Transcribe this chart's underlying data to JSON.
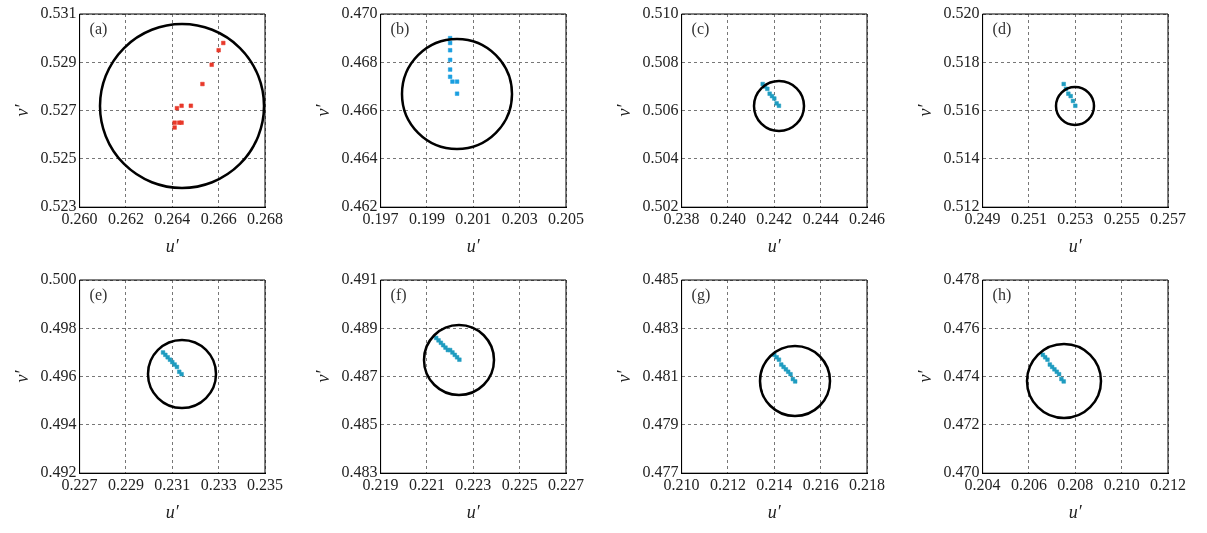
{
  "chart_data": [
    {
      "type": "scatter",
      "annotations": [
        "(a)"
      ],
      "xlabel": "u′",
      "ylabel": "v′",
      "grid": true,
      "xlim": [
        0.26,
        0.268
      ],
      "xticks": [
        {
          "value": 0.26,
          "label": "0.260"
        },
        {
          "value": 0.262,
          "label": "0.262"
        },
        {
          "value": 0.264,
          "label": "0.264"
        },
        {
          "value": 0.266,
          "label": "0.266"
        },
        {
          "value": 0.268,
          "label": "0.268"
        }
      ],
      "ylim": [
        0.523,
        0.531
      ],
      "yticks": [
        {
          "value": 0.523,
          "label": "0.523"
        },
        {
          "value": 0.525,
          "label": "0.525"
        },
        {
          "value": 0.527,
          "label": "0.527"
        },
        {
          "value": 0.529,
          "label": "0.529"
        },
        {
          "value": 0.531,
          "label": "0.531"
        }
      ],
      "series": [
        {
          "type": "scatter",
          "marker": "square",
          "color": "#e8392a",
          "x": [
            0.2641,
            0.2641,
            0.2643,
            0.2644,
            0.2642,
            0.2644,
            0.2648,
            0.2653,
            0.2657,
            0.266,
            0.2662
          ],
          "values": [
            0.5263,
            0.5265,
            0.5265,
            0.5265,
            0.5271,
            0.5272,
            0.5272,
            0.5281,
            0.5289,
            0.5295,
            0.5298
          ]
        }
      ]
    },
    {
      "type": "scatter",
      "annotations": [
        "(b)"
      ],
      "xlabel": "u′",
      "ylabel": "v′",
      "grid": true,
      "xlim": [
        0.197,
        0.205
      ],
      "xticks": [
        {
          "value": 0.197,
          "label": "0.197"
        },
        {
          "value": 0.199,
          "label": "0.199"
        },
        {
          "value": 0.201,
          "label": "0.201"
        },
        {
          "value": 0.203,
          "label": "0.203"
        },
        {
          "value": 0.205,
          "label": "0.205"
        }
      ],
      "ylim": [
        0.462,
        0.47
      ],
      "yticks": [
        {
          "value": 0.462,
          "label": "0.462"
        },
        {
          "value": 0.464,
          "label": "0.464"
        },
        {
          "value": 0.466,
          "label": "0.466"
        },
        {
          "value": 0.468,
          "label": "0.468"
        },
        {
          "value": 0.47,
          "label": "0.470"
        }
      ],
      "series": [
        {
          "type": "scatter",
          "marker": "square",
          "color": "#1a9fe0",
          "x": [
            0.2,
            0.2,
            0.2,
            0.2,
            0.2,
            0.2,
            0.2001,
            0.2003,
            0.2003
          ],
          "values": [
            0.469,
            0.4688,
            0.4685,
            0.4681,
            0.4677,
            0.4674,
            0.4672,
            0.4672,
            0.4667
          ]
        }
      ]
    },
    {
      "type": "scatter",
      "annotations": [
        "(c)"
      ],
      "xlabel": "u′",
      "ylabel": "v′",
      "grid": true,
      "xlim": [
        0.238,
        0.246
      ],
      "xticks": [
        {
          "value": 0.238,
          "label": "0.238"
        },
        {
          "value": 0.24,
          "label": "0.240"
        },
        {
          "value": 0.242,
          "label": "0.242"
        },
        {
          "value": 0.244,
          "label": "0.244"
        },
        {
          "value": 0.246,
          "label": "0.246"
        }
      ],
      "ylim": [
        0.502,
        0.51
      ],
      "yticks": [
        {
          "value": 0.502,
          "label": "0.502"
        },
        {
          "value": 0.504,
          "label": "0.504"
        },
        {
          "value": 0.506,
          "label": "0.506"
        },
        {
          "value": 0.508,
          "label": "0.508"
        },
        {
          "value": 0.51,
          "label": "0.510"
        }
      ],
      "series": [
        {
          "type": "scatter",
          "marker": "square",
          "color": "#1f9cc0",
          "x": [
            0.2415,
            0.2416,
            0.2417,
            0.2418,
            0.2419,
            0.242,
            0.2421,
            0.2422
          ],
          "values": [
            0.5071,
            0.507,
            0.5069,
            0.5067,
            0.5066,
            0.5065,
            0.5063,
            0.5062
          ]
        }
      ]
    },
    {
      "type": "scatter",
      "annotations": [
        "(d)"
      ],
      "xlabel": "u′",
      "ylabel": "v′",
      "grid": true,
      "xlim": [
        0.249,
        0.257
      ],
      "xticks": [
        {
          "value": 0.249,
          "label": "0.249"
        },
        {
          "value": 0.251,
          "label": "0.251"
        },
        {
          "value": 0.253,
          "label": "0.253"
        },
        {
          "value": 0.255,
          "label": "0.255"
        },
        {
          "value": 0.257,
          "label": "0.257"
        }
      ],
      "ylim": [
        0.512,
        0.52
      ],
      "yticks": [
        {
          "value": 0.512,
          "label": "0.512"
        },
        {
          "value": 0.514,
          "label": "0.514"
        },
        {
          "value": 0.516,
          "label": "0.516"
        },
        {
          "value": 0.518,
          "label": "0.518"
        },
        {
          "value": 0.52,
          "label": "0.520"
        }
      ],
      "series": [
        {
          "type": "scatter",
          "marker": "square",
          "color": "#1f9cc0",
          "x": [
            0.2525,
            0.2526,
            0.2527,
            0.2528,
            0.2529,
            0.253
          ],
          "values": [
            0.5171,
            0.5169,
            0.5167,
            0.5166,
            0.5164,
            0.5162
          ]
        }
      ]
    },
    {
      "type": "scatter",
      "annotations": [
        "(e)"
      ],
      "xlabel": "u′",
      "ylabel": "v′",
      "grid": true,
      "xlim": [
        0.227,
        0.235
      ],
      "xticks": [
        {
          "value": 0.227,
          "label": "0.227"
        },
        {
          "value": 0.229,
          "label": "0.229"
        },
        {
          "value": 0.231,
          "label": "0.231"
        },
        {
          "value": 0.233,
          "label": "0.233"
        },
        {
          "value": 0.235,
          "label": "0.235"
        }
      ],
      "ylim": [
        0.492,
        0.5
      ],
      "yticks": [
        {
          "value": 0.492,
          "label": "0.492"
        },
        {
          "value": 0.494,
          "label": "0.494"
        },
        {
          "value": 0.496,
          "label": "0.496"
        },
        {
          "value": 0.498,
          "label": "0.498"
        },
        {
          "value": 0.5,
          "label": "0.500"
        }
      ],
      "series": [
        {
          "type": "scatter",
          "marker": "square",
          "color": "#1f9cc0",
          "x": [
            0.2306,
            0.2307,
            0.2308,
            0.2309,
            0.231,
            0.2311,
            0.2312,
            0.2313,
            0.2314
          ],
          "values": [
            0.497,
            0.4969,
            0.4968,
            0.4967,
            0.4966,
            0.4965,
            0.4964,
            0.4962,
            0.4961
          ]
        }
      ]
    },
    {
      "type": "scatter",
      "annotations": [
        "(f)"
      ],
      "xlabel": "u′",
      "ylabel": "v′",
      "grid": true,
      "xlim": [
        0.219,
        0.227
      ],
      "xticks": [
        {
          "value": 0.219,
          "label": "0.219"
        },
        {
          "value": 0.221,
          "label": "0.221"
        },
        {
          "value": 0.223,
          "label": "0.223"
        },
        {
          "value": 0.225,
          "label": "0.225"
        },
        {
          "value": 0.227,
          "label": "0.227"
        }
      ],
      "ylim": [
        0.483,
        0.491
      ],
      "yticks": [
        {
          "value": 0.483,
          "label": "0.483"
        },
        {
          "value": 0.485,
          "label": "0.485"
        },
        {
          "value": 0.487,
          "label": "0.487"
        },
        {
          "value": 0.489,
          "label": "0.489"
        },
        {
          "value": 0.491,
          "label": "0.491"
        }
      ],
      "series": [
        {
          "type": "scatter",
          "marker": "square",
          "color": "#1f9cc0",
          "x": [
            0.2214,
            0.2215,
            0.2216,
            0.2217,
            0.2218,
            0.2219,
            0.222,
            0.2221,
            0.2222,
            0.2223,
            0.2224
          ],
          "values": [
            0.4886,
            0.4885,
            0.4884,
            0.4883,
            0.4882,
            0.4881,
            0.4881,
            0.488,
            0.4879,
            0.4878,
            0.4877
          ]
        }
      ]
    },
    {
      "type": "scatter",
      "annotations": [
        "(g)"
      ],
      "xlabel": "u′",
      "ylabel": "v′",
      "grid": true,
      "xlim": [
        0.21,
        0.218
      ],
      "xticks": [
        {
          "value": 0.21,
          "label": "0.210"
        },
        {
          "value": 0.212,
          "label": "0.212"
        },
        {
          "value": 0.214,
          "label": "0.214"
        },
        {
          "value": 0.216,
          "label": "0.216"
        },
        {
          "value": 0.218,
          "label": "0.218"
        }
      ],
      "ylim": [
        0.477,
        0.485
      ],
      "yticks": [
        {
          "value": 0.477,
          "label": "0.477"
        },
        {
          "value": 0.479,
          "label": "0.479"
        },
        {
          "value": 0.481,
          "label": "0.481"
        },
        {
          "value": 0.483,
          "label": "0.483"
        },
        {
          "value": 0.485,
          "label": "0.485"
        }
      ],
      "series": [
        {
          "type": "scatter",
          "marker": "square",
          "color": "#1f9cc0",
          "x": [
            0.214,
            0.2141,
            0.2142,
            0.2143,
            0.2144,
            0.2145,
            0.2146,
            0.2147,
            0.2148,
            0.2149
          ],
          "values": [
            0.4819,
            0.4818,
            0.4817,
            0.4815,
            0.4814,
            0.4813,
            0.4812,
            0.4811,
            0.4809,
            0.4808
          ]
        }
      ]
    },
    {
      "type": "scatter",
      "annotations": [
        "(h)"
      ],
      "xlabel": "u′",
      "ylabel": "v′",
      "grid": true,
      "xlim": [
        0.204,
        0.212
      ],
      "xticks": [
        {
          "value": 0.204,
          "label": "0.204"
        },
        {
          "value": 0.206,
          "label": "0.206"
        },
        {
          "value": 0.208,
          "label": "0.208"
        },
        {
          "value": 0.21,
          "label": "0.210"
        },
        {
          "value": 0.212,
          "label": "0.212"
        }
      ],
      "ylim": [
        0.47,
        0.478
      ],
      "yticks": [
        {
          "value": 0.47,
          "label": "0.470"
        },
        {
          "value": 0.472,
          "label": "0.472"
        },
        {
          "value": 0.474,
          "label": "0.474"
        },
        {
          "value": 0.476,
          "label": "0.476"
        },
        {
          "value": 0.478,
          "label": "0.478"
        }
      ],
      "series": [
        {
          "type": "scatter",
          "marker": "square",
          "color": "#1f9cc0",
          "x": [
            0.2066,
            0.2067,
            0.2068,
            0.2069,
            0.207,
            0.2071,
            0.2072,
            0.2073,
            0.2074,
            0.2075
          ],
          "values": [
            0.4749,
            0.4748,
            0.4747,
            0.4745,
            0.4744,
            0.4743,
            0.4742,
            0.4741,
            0.4739,
            0.4738
          ]
        }
      ]
    }
  ]
}
